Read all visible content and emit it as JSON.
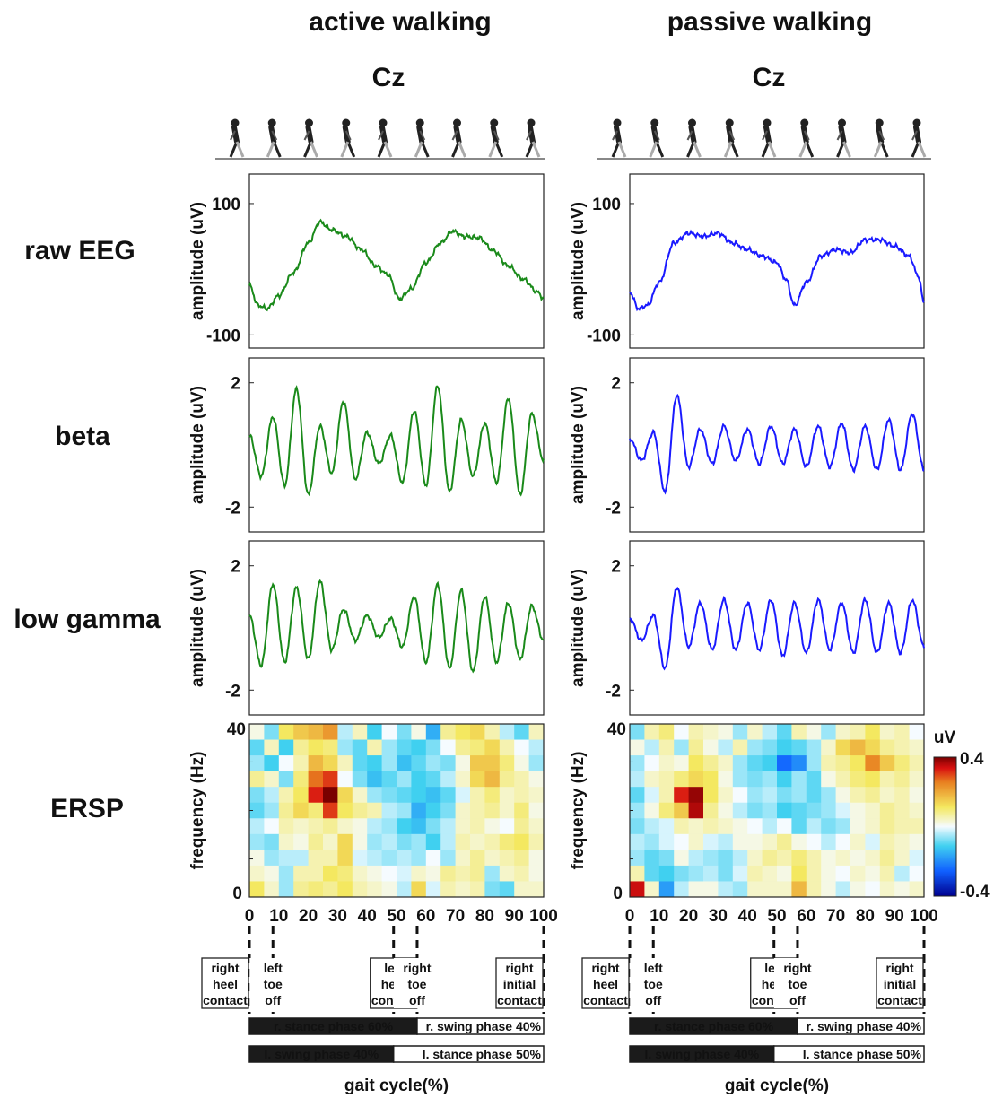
{
  "columns": [
    {
      "id": "active",
      "title": "active walking",
      "channel": "Cz",
      "color": "#1a8a1a"
    },
    {
      "id": "passive",
      "title": "passive walking",
      "channel": "Cz",
      "color": "#1a1aff"
    }
  ],
  "row_labels": [
    "raw EEG",
    "beta",
    "low gamma",
    "ERSP"
  ],
  "colorbar": {
    "unit": "uV",
    "max_label": "0.4",
    "min_label": "-0.4"
  },
  "gait_events": [
    {
      "pos": 0,
      "lines": [
        "right",
        "heel",
        "contact"
      ]
    },
    {
      "pos": 8,
      "lines": [
        "left",
        "toe",
        "off"
      ]
    },
    {
      "pos": 49,
      "lines": [
        "left",
        "heel",
        "contact"
      ]
    },
    {
      "pos": 57,
      "lines": [
        "right",
        "toe",
        "off"
      ]
    },
    {
      "pos": 100,
      "lines": [
        "right",
        "initial",
        "contact"
      ]
    }
  ],
  "phase_bars": {
    "right": [
      {
        "label": "r. stance phase 60%",
        "start": 0,
        "end": 57,
        "fill": "dark"
      },
      {
        "label": "r. swing phase 40%",
        "start": 57,
        "end": 100,
        "fill": "light"
      }
    ],
    "left": [
      {
        "label": "l. swing phase 40%",
        "start": 0,
        "end": 49,
        "fill": "dark"
      },
      {
        "label": "l. stance phase 50%",
        "start": 49,
        "end": 100,
        "fill": "light"
      }
    ]
  },
  "xlabel": "gait cycle(%)",
  "chart_data": [
    {
      "type": "line",
      "panel": "raw-active",
      "ylabel": "amplitude (uV)",
      "yticks": [
        100,
        -100
      ],
      "ylim": [
        -120,
        145
      ],
      "xlim": [
        0,
        100
      ],
      "series": [
        {
          "x": [
            0,
            3,
            6,
            10,
            15,
            20,
            24,
            28,
            33,
            38,
            43,
            47,
            51,
            55,
            60,
            65,
            69,
            73,
            78,
            83,
            88,
            93,
            98,
            100
          ],
          "y": [
            -25,
            -55,
            -60,
            -40,
            -5,
            40,
            72,
            60,
            50,
            30,
            5,
            -8,
            -45,
            -30,
            10,
            40,
            58,
            50,
            48,
            28,
            5,
            -15,
            -35,
            -45
          ]
        }
      ]
    },
    {
      "type": "line",
      "panel": "raw-passive",
      "ylabel": "amplitude (uV)",
      "yticks": [
        100,
        -100
      ],
      "ylim": [
        -120,
        145
      ],
      "xlim": [
        0,
        100
      ],
      "series": [
        {
          "x": [
            0,
            3,
            6,
            10,
            15,
            20,
            25,
            30,
            35,
            40,
            45,
            50,
            53,
            56,
            60,
            65,
            70,
            75,
            80,
            85,
            90,
            95,
            98,
            100
          ],
          "y": [
            -35,
            -60,
            -55,
            -20,
            40,
            55,
            50,
            55,
            40,
            30,
            20,
            10,
            -15,
            -55,
            -20,
            20,
            30,
            25,
            45,
            45,
            35,
            20,
            -10,
            -50
          ]
        }
      ]
    },
    {
      "type": "line",
      "panel": "beta-active",
      "ylabel": "amplitude (uV)",
      "yticks": [
        2,
        -2
      ],
      "ylim": [
        -2.8,
        2.8
      ],
      "xlim": [
        0,
        100
      ],
      "series": [
        {
          "x": [
            0,
            4,
            8,
            12,
            16,
            20,
            24,
            28,
            32,
            36,
            40,
            44,
            48,
            52,
            56,
            60,
            64,
            68,
            72,
            76,
            80,
            84,
            88,
            92,
            96,
            100
          ],
          "y": [
            0.3,
            -1.0,
            0.9,
            -1.3,
            1.8,
            -1.6,
            0.6,
            -0.9,
            1.4,
            -1.1,
            0.4,
            -0.6,
            0.3,
            -1.2,
            1.1,
            -1.3,
            1.9,
            -1.5,
            0.8,
            -1.0,
            0.7,
            -1.2,
            1.5,
            -1.6,
            1.0,
            -0.5
          ]
        }
      ]
    },
    {
      "type": "line",
      "panel": "beta-passive",
      "ylabel": "amplitude (uV)",
      "yticks": [
        2,
        -2
      ],
      "ylim": [
        -2.8,
        2.8
      ],
      "xlim": [
        0,
        100
      ],
      "series": [
        {
          "x": [
            0,
            4,
            8,
            12,
            16,
            20,
            24,
            28,
            32,
            36,
            40,
            44,
            48,
            52,
            56,
            60,
            64,
            68,
            72,
            76,
            80,
            84,
            88,
            92,
            96,
            100
          ],
          "y": [
            0.2,
            -0.5,
            0.4,
            -1.5,
            1.6,
            -0.7,
            0.5,
            -0.6,
            0.6,
            -0.5,
            0.5,
            -0.6,
            0.6,
            -0.6,
            0.5,
            -0.7,
            0.6,
            -0.7,
            0.7,
            -0.8,
            0.6,
            -0.8,
            0.8,
            -0.8,
            1.0,
            -0.8
          ]
        }
      ]
    },
    {
      "type": "line",
      "panel": "gamma-active",
      "ylabel": "amplitude (uV)",
      "yticks": [
        2,
        -2
      ],
      "ylim": [
        -2.8,
        2.8
      ],
      "xlim": [
        0,
        100
      ],
      "series": [
        {
          "x": [
            0,
            4,
            8,
            12,
            16,
            20,
            24,
            28,
            32,
            36,
            40,
            44,
            48,
            52,
            56,
            60,
            64,
            68,
            72,
            76,
            80,
            84,
            88,
            92,
            96,
            100
          ],
          "y": [
            0.4,
            -1.2,
            1.4,
            -1.1,
            1.3,
            -1.0,
            1.5,
            -0.7,
            0.6,
            -0.4,
            0.4,
            -0.3,
            0.3,
            -0.6,
            1.0,
            -1.1,
            1.4,
            -1.3,
            1.2,
            -1.4,
            1.0,
            -1.1,
            0.8,
            -1.0,
            0.7,
            -0.4
          ]
        }
      ]
    },
    {
      "type": "line",
      "panel": "gamma-passive",
      "ylabel": "amplitude (uV)",
      "yticks": [
        2,
        -2
      ],
      "ylim": [
        -2.8,
        2.8
      ],
      "xlim": [
        0,
        100
      ],
      "series": [
        {
          "x": [
            0,
            4,
            8,
            12,
            16,
            20,
            24,
            28,
            32,
            36,
            40,
            44,
            48,
            52,
            56,
            60,
            64,
            68,
            72,
            76,
            80,
            84,
            88,
            92,
            96,
            100
          ],
          "y": [
            0.3,
            -0.4,
            0.4,
            -1.3,
            1.3,
            -0.6,
            0.8,
            -0.7,
            0.9,
            -0.7,
            0.8,
            -0.7,
            0.9,
            -0.9,
            0.8,
            -0.8,
            0.9,
            -0.7,
            0.8,
            -0.8,
            0.9,
            -0.8,
            0.8,
            -0.8,
            0.9,
            -0.6
          ]
        }
      ]
    },
    {
      "type": "heatmap",
      "panel": "ersp-active",
      "ylabel": "frequency (Hz)",
      "yticks": [
        40,
        0
      ],
      "xticks": [
        0,
        10,
        20,
        30,
        40,
        50,
        60,
        70,
        80,
        90,
        100
      ],
      "clim": [
        -0.4,
        0.4
      ],
      "x_bins": 20,
      "freq_bins": [
        40,
        36,
        32,
        28,
        24,
        20,
        16,
        12,
        8,
        4,
        0
      ],
      "values": [
        [
          0.02,
          -0.08,
          0.12,
          0.16,
          0.18,
          0.22,
          -0.04,
          0.05,
          -0.12,
          0.0,
          -0.08,
          0.02,
          -0.16,
          0.08,
          0.12,
          0.14,
          0.06,
          -0.04,
          -0.1,
          0.05
        ],
        [
          -0.1,
          0.05,
          -0.12,
          0.08,
          0.12,
          0.1,
          -0.06,
          -0.1,
          0.06,
          -0.06,
          -0.1,
          -0.12,
          -0.08,
          0.0,
          0.08,
          0.1,
          0.14,
          0.06,
          0.0,
          -0.04
        ],
        [
          -0.06,
          -0.12,
          0.0,
          0.06,
          0.18,
          0.14,
          0.05,
          -0.1,
          -0.12,
          -0.06,
          -0.14,
          -0.1,
          -0.06,
          -0.08,
          0.02,
          0.16,
          0.16,
          0.1,
          0.02,
          -0.06
        ],
        [
          0.08,
          0.04,
          -0.08,
          0.1,
          0.26,
          0.3,
          0.0,
          -0.08,
          -0.14,
          -0.1,
          -0.06,
          -0.12,
          -0.1,
          -0.04,
          0.04,
          0.14,
          0.18,
          0.08,
          0.06,
          0.02
        ],
        [
          -0.08,
          -0.04,
          0.06,
          0.12,
          0.32,
          0.4,
          0.14,
          0.04,
          -0.06,
          -0.08,
          -0.1,
          -0.12,
          -0.14,
          -0.1,
          -0.02,
          0.06,
          0.1,
          0.04,
          0.06,
          0.04
        ],
        [
          -0.1,
          -0.06,
          0.08,
          0.14,
          0.1,
          0.3,
          0.12,
          0.08,
          0.06,
          -0.04,
          -0.06,
          -0.16,
          -0.12,
          -0.08,
          0.04,
          0.06,
          0.08,
          0.04,
          0.1,
          0.02
        ],
        [
          -0.04,
          0.0,
          0.06,
          0.04,
          0.06,
          0.08,
          0.04,
          0.02,
          -0.04,
          -0.06,
          -0.12,
          -0.14,
          -0.08,
          -0.04,
          0.04,
          0.06,
          0.02,
          0.0,
          0.08,
          0.04
        ],
        [
          -0.06,
          -0.08,
          0.04,
          0.02,
          0.08,
          0.04,
          0.14,
          0.02,
          -0.06,
          -0.04,
          -0.08,
          -0.06,
          -0.12,
          -0.04,
          0.06,
          0.04,
          0.06,
          0.1,
          0.12,
          0.06
        ],
        [
          0.02,
          -0.06,
          -0.04,
          -0.04,
          0.06,
          0.06,
          0.14,
          -0.02,
          -0.04,
          -0.06,
          -0.04,
          -0.06,
          0.0,
          -0.06,
          0.04,
          0.08,
          0.04,
          0.06,
          0.08,
          0.02
        ],
        [
          0.04,
          0.02,
          -0.06,
          0.06,
          0.06,
          0.12,
          0.1,
          0.04,
          0.02,
          0.0,
          -0.02,
          0.04,
          0.02,
          0.08,
          0.06,
          0.08,
          -0.06,
          0.04,
          0.06,
          0.02
        ],
        [
          0.12,
          0.04,
          -0.06,
          0.08,
          0.1,
          0.08,
          0.12,
          0.06,
          0.04,
          0.02,
          -0.04,
          0.14,
          -0.02,
          0.06,
          0.04,
          0.06,
          -0.08,
          -0.1,
          0.04,
          0.04
        ]
      ]
    },
    {
      "type": "heatmap",
      "panel": "ersp-passive",
      "ylabel": "frequency (Hz)",
      "yticks": [
        40,
        0
      ],
      "xticks": [
        0,
        10,
        20,
        30,
        40,
        50,
        60,
        70,
        80,
        90,
        100
      ],
      "clim": [
        -0.4,
        0.4
      ],
      "x_bins": 20,
      "freq_bins": [
        40,
        36,
        32,
        28,
        24,
        20,
        16,
        12,
        8,
        4,
        0
      ],
      "values": [
        [
          -0.08,
          0.06,
          0.1,
          0.0,
          0.06,
          0.04,
          0.02,
          -0.06,
          0.04,
          -0.04,
          -0.1,
          0.06,
          0.02,
          -0.06,
          0.04,
          0.06,
          0.12,
          0.04,
          0.06,
          0.0
        ],
        [
          0.02,
          -0.04,
          0.06,
          -0.06,
          0.08,
          0.02,
          -0.04,
          0.06,
          -0.06,
          -0.08,
          -0.12,
          -0.1,
          -0.06,
          0.04,
          0.14,
          0.18,
          0.14,
          0.08,
          0.06,
          0.04
        ],
        [
          -0.06,
          0.0,
          0.04,
          0.02,
          0.12,
          0.08,
          0.04,
          -0.06,
          -0.1,
          -0.12,
          -0.24,
          -0.2,
          -0.06,
          0.06,
          0.08,
          0.12,
          0.24,
          0.16,
          0.1,
          0.06
        ],
        [
          -0.04,
          0.04,
          0.06,
          0.1,
          0.14,
          0.12,
          0.02,
          -0.06,
          -0.08,
          -0.06,
          -0.12,
          -0.06,
          -0.1,
          0.02,
          0.06,
          0.1,
          0.12,
          0.06,
          0.08,
          0.04
        ],
        [
          -0.1,
          -0.02,
          0.06,
          0.32,
          0.38,
          0.12,
          0.04,
          0.0,
          -0.06,
          -0.04,
          -0.08,
          -0.06,
          -0.1,
          -0.06,
          0.02,
          0.06,
          0.08,
          0.04,
          0.06,
          0.02
        ],
        [
          -0.06,
          0.02,
          0.1,
          0.16,
          0.36,
          0.08,
          0.02,
          -0.04,
          -0.08,
          -0.06,
          -0.12,
          -0.1,
          -0.08,
          -0.06,
          -0.02,
          0.02,
          0.04,
          0.08,
          0.06,
          0.04
        ],
        [
          -0.08,
          -0.04,
          -0.02,
          0.06,
          0.04,
          0.06,
          0.04,
          0.02,
          0.0,
          -0.04,
          0.0,
          -0.1,
          -0.04,
          -0.08,
          -0.06,
          0.02,
          0.04,
          0.08,
          0.06,
          0.06
        ],
        [
          -0.04,
          -0.06,
          -0.02,
          0.0,
          0.04,
          -0.02,
          -0.04,
          0.02,
          0.02,
          0.04,
          0.08,
          0.02,
          0.0,
          -0.04,
          0.0,
          0.04,
          -0.02,
          0.06,
          0.04,
          0.02
        ],
        [
          -0.06,
          -0.1,
          -0.08,
          0.02,
          -0.04,
          -0.06,
          -0.08,
          -0.04,
          0.04,
          0.08,
          0.06,
          0.1,
          0.06,
          0.02,
          0.04,
          0.02,
          0.04,
          0.08,
          0.04,
          -0.02
        ],
        [
          0.06,
          -0.1,
          -0.12,
          -0.08,
          -0.06,
          -0.04,
          -0.08,
          -0.02,
          0.06,
          0.04,
          0.02,
          0.12,
          0.06,
          0.02,
          0.0,
          0.04,
          0.02,
          0.06,
          -0.04,
          0.0
        ],
        [
          0.34,
          0.04,
          -0.18,
          -0.04,
          0.02,
          0.02,
          -0.04,
          -0.06,
          0.04,
          0.04,
          0.04,
          0.18,
          0.06,
          0.02,
          -0.04,
          0.02,
          0.0,
          0.04,
          0.02,
          0.04
        ]
      ]
    }
  ]
}
